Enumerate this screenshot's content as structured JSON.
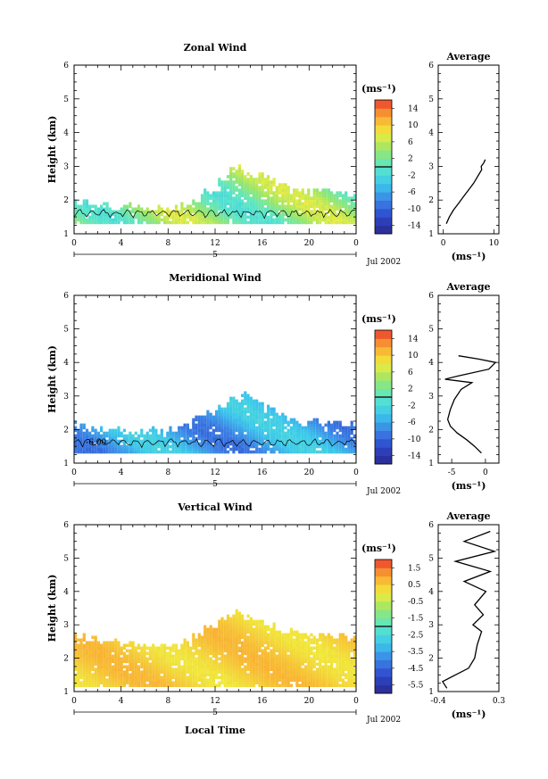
{
  "chart_data": [
    {
      "type": "heatmap",
      "title": "Zonal Wind",
      "ylabel": "Height (km)",
      "xlim": [
        0,
        24
      ],
      "ylim": [
        1,
        6
      ],
      "xticks": [
        "0",
        "4",
        "8",
        "12",
        "16",
        "20",
        "0"
      ],
      "yticks": [
        "1",
        "2",
        "3",
        "4",
        "5",
        "6"
      ],
      "date_marker": "5",
      "date_label": "Jul 2002",
      "colorbar": {
        "unit": "(ms⁻¹)",
        "ticks": [
          "14",
          "10",
          "6",
          "2",
          "-2",
          "-6",
          "-10",
          "-14"
        ],
        "vmin": -16,
        "vmax": 16
      },
      "field_summary": {
        "base_km": 1.3,
        "top_km": [
          1.9,
          1.85,
          1.8,
          1.75,
          1.8,
          1.7,
          1.65,
          1.7,
          1.75,
          1.8,
          2.0,
          2.2,
          2.6,
          2.9,
          2.8,
          2.7,
          2.6,
          2.4,
          2.3,
          2.25,
          2.2,
          2.2,
          2.2,
          2.15,
          2.1
        ],
        "value_range_ms": [
          -2,
          8
        ]
      },
      "average_profile": {
        "title": "Average",
        "xlabel": "(ms⁻¹)",
        "xlim": [
          -1,
          11
        ],
        "xticks": [
          "0",
          "10"
        ],
        "yticks": [
          "1",
          "2",
          "3",
          "4",
          "5",
          "6"
        ],
        "height_km": [
          1.3,
          1.5,
          1.7,
          1.9,
          2.1,
          2.3,
          2.5,
          2.7,
          2.9,
          3.0,
          3.1,
          3.2
        ],
        "value_ms": [
          0.6,
          1.2,
          2.0,
          3.0,
          4.0,
          5.0,
          6.0,
          6.8,
          7.6,
          7.5,
          8.0,
          8.3
        ]
      }
    },
    {
      "type": "heatmap",
      "title": "Meridional Wind",
      "ylabel": "Height (km)",
      "xlim": [
        0,
        24
      ],
      "ylim": [
        1,
        6
      ],
      "xticks": [
        "0",
        "4",
        "8",
        "12",
        "16",
        "20",
        "0"
      ],
      "yticks": [
        "1",
        "2",
        "3",
        "4",
        "5",
        "6"
      ],
      "date_marker": "5",
      "date_label": "Jul 2002",
      "colorbar": {
        "unit": "(ms⁻¹)",
        "ticks": [
          "14",
          "10",
          "6",
          "2",
          "-2",
          "-6",
          "-10",
          "-14"
        ],
        "vmin": -16,
        "vmax": 16
      },
      "contour_label": "-6.00",
      "field_summary": {
        "base_km": 1.3,
        "top_km": [
          2.1,
          2.0,
          2.0,
          1.95,
          1.9,
          1.9,
          1.95,
          1.9,
          2.0,
          2.1,
          2.3,
          2.5,
          2.7,
          2.9,
          3.0,
          2.8,
          2.6,
          2.4,
          2.3,
          2.2,
          2.2,
          2.15,
          2.1,
          2.1,
          2.05
        ],
        "value_range_ms": [
          -10,
          -2
        ]
      },
      "average_profile": {
        "title": "Average",
        "xlabel": "(ms⁻¹)",
        "xlim": [
          -7,
          2
        ],
        "xticks": [
          "-5",
          "0"
        ],
        "yticks": [
          "1",
          "2",
          "3",
          "4",
          "5",
          "6"
        ],
        "height_km": [
          1.3,
          1.5,
          1.7,
          1.9,
          2.1,
          2.3,
          2.6,
          2.9,
          3.2,
          3.4,
          3.5,
          3.6,
          3.8,
          4.0,
          4.1,
          4.2
        ],
        "value_ms": [
          -0.6,
          -1.6,
          -2.8,
          -4.2,
          -5.2,
          -5.6,
          -5.2,
          -4.6,
          -3.6,
          -2.0,
          -6.0,
          -4.0,
          0.5,
          1.5,
          -1.0,
          -4.0
        ]
      }
    },
    {
      "type": "heatmap",
      "title": "Vertical Wind",
      "ylabel": "Height (km)",
      "xlabel": "Local Time",
      "xlim": [
        0,
        24
      ],
      "ylim": [
        1,
        6
      ],
      "xticks": [
        "0",
        "4",
        "8",
        "12",
        "16",
        "20",
        "0"
      ],
      "yticks": [
        "1",
        "2",
        "3",
        "4",
        "5",
        "6"
      ],
      "date_marker": "5",
      "date_label": "Jul 2002",
      "colorbar": {
        "unit": "(ms⁻¹)",
        "ticks": [
          "1.5",
          "0.5",
          "-0.5",
          "-1.5",
          "-2.5",
          "-3.5",
          "-4.5",
          "-5.5"
        ],
        "vmin": -6,
        "vmax": 2
      },
      "field_summary": {
        "base_km": 1.15,
        "top_km": [
          2.6,
          2.55,
          2.5,
          2.45,
          2.4,
          2.4,
          2.35,
          2.3,
          2.35,
          2.4,
          2.6,
          2.9,
          3.2,
          3.3,
          3.2,
          3.0,
          2.9,
          2.8,
          2.75,
          2.7,
          2.65,
          2.6,
          2.6,
          2.55,
          2.5
        ],
        "value_range_ms": [
          0.0,
          0.9
        ]
      },
      "average_profile": {
        "title": "Average",
        "xlabel": "(ms⁻¹)",
        "xlim": [
          -0.4,
          0.3
        ],
        "xticks": [
          "-0.4",
          "0.3"
        ],
        "yticks": [
          "1",
          "2",
          "3",
          "4",
          "5",
          "6"
        ],
        "height_km": [
          1.1,
          1.3,
          1.5,
          1.7,
          2.0,
          2.4,
          2.8,
          3.0,
          3.3,
          3.6,
          4.0,
          4.3,
          4.6,
          4.9,
          5.2,
          5.5,
          5.8
        ],
        "value_ms": [
          -0.3,
          -0.35,
          -0.2,
          -0.05,
          0.02,
          0.05,
          0.1,
          0.0,
          0.12,
          0.02,
          0.15,
          -0.1,
          0.2,
          -0.2,
          0.25,
          -0.1,
          0.2
        ]
      }
    }
  ]
}
